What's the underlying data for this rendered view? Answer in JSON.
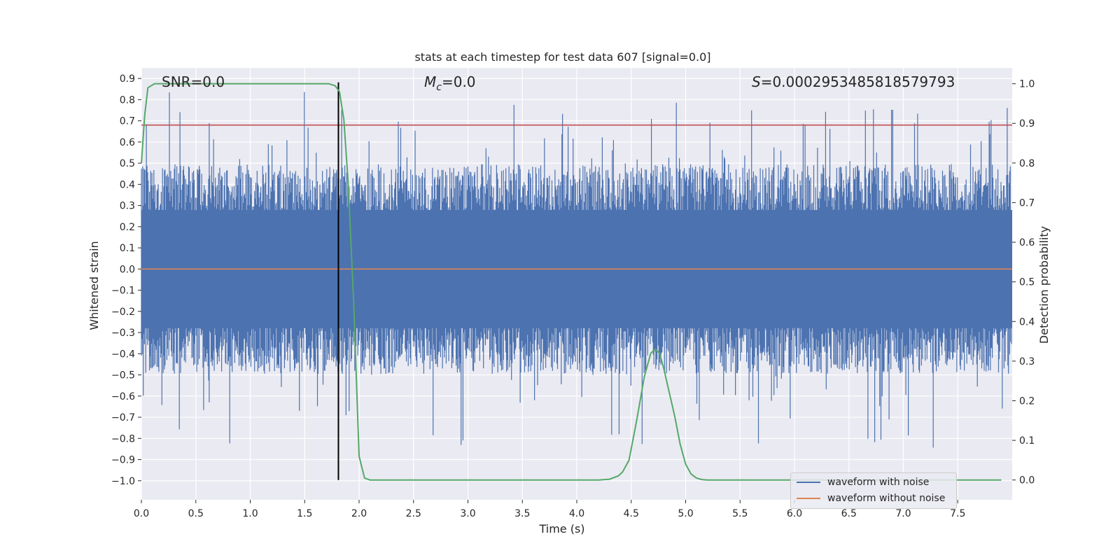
{
  "chart_data": {
    "type": "line",
    "title": "stats at each timestep for test data 607 [signal=0.0]",
    "xlabel": "Time (s)",
    "ylabel_left": "Whitened strain",
    "ylabel_right": "Detection probability",
    "xlim": [
      0.0,
      8.0
    ],
    "ylim_left": [
      -1.09,
      0.95
    ],
    "ylim_right": [
      -0.05,
      1.04
    ],
    "x_ticks": [
      "0.0",
      "0.5",
      "1.0",
      "1.5",
      "2.0",
      "2.5",
      "3.0",
      "3.5",
      "4.0",
      "4.5",
      "5.0",
      "5.5",
      "6.0",
      "6.5",
      "7.0",
      "7.5"
    ],
    "y_ticks_left": [
      "0.9",
      "0.8",
      "0.7",
      "0.6",
      "0.5",
      "0.4",
      "0.3",
      "0.2",
      "0.1",
      "0.0",
      "−0.1",
      "−0.2",
      "−0.3",
      "−0.4",
      "−0.5",
      "−0.6",
      "−0.7",
      "−0.8",
      "−0.9",
      "−1.0"
    ],
    "y_ticks_right": [
      "1.0",
      "0.9",
      "0.8",
      "0.7",
      "0.6",
      "0.5",
      "0.4",
      "0.3",
      "0.2",
      "0.1",
      "0.0"
    ],
    "annotations": {
      "snr": "SNR=0.0",
      "mc_symbol": "M",
      "mc_sub": "c",
      "mc_value": "=0.0",
      "s_symbol": "S",
      "s_value": "=0.0002953485818579793"
    },
    "threshold_strain": 0.68,
    "vertical_marker_time": 1.81,
    "noise_envelope": {
      "upper_typical": 0.45,
      "lower_typical": -0.45,
      "max": 0.87,
      "min": -0.99
    },
    "series": [
      {
        "name": "waveform with noise",
        "axis": "left",
        "color": "#4c72b0"
      },
      {
        "name": "waveform without noise",
        "axis": "left",
        "color": "#dd8452",
        "x": [
          0.0,
          8.0
        ],
        "y": [
          0.0,
          0.0
        ]
      },
      {
        "axis": "right",
        "color": "#55a868",
        "x": [
          0.0,
          0.03,
          0.06,
          0.12,
          0.2,
          0.4,
          0.8,
          1.2,
          1.5,
          1.65,
          1.72,
          1.78,
          1.82,
          1.86,
          1.9,
          1.95,
          2.0,
          2.05,
          2.1,
          2.2,
          2.5,
          3.0,
          3.5,
          4.0,
          4.2,
          4.3,
          4.38,
          4.42,
          4.48,
          4.55,
          4.62,
          4.68,
          4.72,
          4.76,
          4.8,
          4.85,
          4.9,
          4.95,
          5.0,
          5.05,
          5.1,
          5.15,
          5.2,
          5.3,
          5.5,
          6.0,
          7.0,
          7.9
        ],
        "y": [
          0.8,
          0.92,
          0.99,
          1.0,
          1.0,
          1.0,
          1.0,
          1.0,
          1.0,
          1.0,
          1.0,
          0.995,
          0.98,
          0.91,
          0.75,
          0.45,
          0.06,
          0.005,
          0.0,
          0.0,
          0.0,
          0.0,
          0.0,
          0.0,
          0.0,
          0.002,
          0.01,
          0.02,
          0.05,
          0.15,
          0.26,
          0.32,
          0.33,
          0.32,
          0.28,
          0.22,
          0.16,
          0.09,
          0.04,
          0.015,
          0.005,
          0.001,
          0.0,
          0.0,
          0.0,
          0.0,
          0.0,
          0.0
        ]
      }
    ],
    "grid": true,
    "legend": "lower right"
  },
  "colors": {
    "axes_bg": "#eaeaf2",
    "grid": "#ffffff",
    "noise": "#4c72b0",
    "clean": "#dd8452",
    "probability": "#55a868",
    "threshold": "#c44e52",
    "marker": "#000000"
  }
}
